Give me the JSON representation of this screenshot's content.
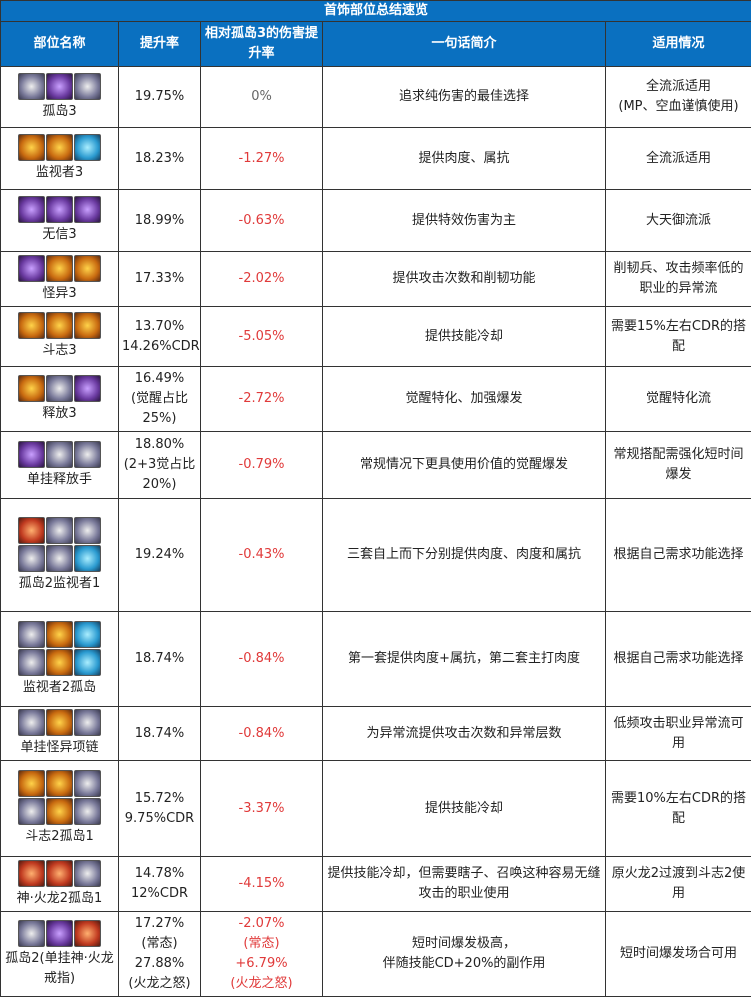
{
  "title": "首饰部位总结速览",
  "headers": [
    "部位名称",
    "提升率",
    "相对孤岛3的伤害提升率",
    "一句话简介",
    "适用情况"
  ],
  "rows": [
    {
      "name": "孤岛3",
      "icons": [
        "c0",
        "c2",
        "c0"
      ],
      "rate": "19.75%",
      "rel": "0%",
      "rel_color": "gray",
      "desc": "追求纯伤害的最佳选择",
      "use": "全流派适用\n(MP、空血谨慎使用)"
    },
    {
      "name": "监视者3",
      "icons": [
        "c1",
        "c1",
        "c3"
      ],
      "rate": "18.23%",
      "rel": "-1.27%",
      "rel_color": "red",
      "desc": "提供肉度、属抗",
      "use": "全流派适用"
    },
    {
      "name": "无信3",
      "icons": [
        "c2",
        "c2",
        "c2"
      ],
      "rate": "18.99%",
      "rel": "-0.63%",
      "rel_color": "red",
      "desc": "提供特效伤害为主",
      "use": "大天御流派"
    },
    {
      "name": "怪异3",
      "icons": [
        "c2",
        "c1",
        "c1"
      ],
      "rate": "17.33%",
      "rel": "-2.02%",
      "rel_color": "red",
      "desc": "提供攻击次数和削韧功能",
      "use": "削韧兵、攻击频率低的职业的异常流"
    },
    {
      "name": "斗志3",
      "icons": [
        "c1",
        "c1",
        "c1"
      ],
      "rate": "13.70%\n14.26%CDR",
      "rel": "-5.05%",
      "rel_color": "red",
      "desc": "提供技能冷却",
      "use": "需要15%左右CDR的搭配"
    },
    {
      "name": "释放3",
      "icons": [
        "c1",
        "c0",
        "c2"
      ],
      "rate": "16.49%\n(觉醒占比\n25%)",
      "rel": "-2.72%",
      "rel_color": "red",
      "desc": "觉醒特化、加强爆发",
      "use": "觉醒特化流"
    },
    {
      "name": "单挂释放手",
      "icons": [
        "c2",
        "c0",
        "c0"
      ],
      "rate": "18.80%\n(2+3觉占比\n20%)",
      "rel": "-0.79%",
      "rel_color": "red",
      "desc": "常规情况下更具使用价值的觉醒爆发",
      "use": "常规搭配需强化短时间爆发"
    },
    {
      "name": "孤岛2监视者1",
      "icons": [
        "c4",
        "c0",
        "c0",
        "c0",
        "c0",
        "c3"
      ],
      "rate": "19.24%",
      "rel": "-0.43%",
      "rel_color": "red",
      "desc": "三套自上而下分别提供肉度、肉度和属抗",
      "use": "根据自己需求功能选择"
    },
    {
      "name": "监视者2孤岛",
      "icons": [
        "c0",
        "c1",
        "c3",
        "c0",
        "c1",
        "c3"
      ],
      "rate": "18.74%",
      "rel": "-0.84%",
      "rel_color": "red",
      "desc": "第一套提供肉度+属抗，第二套主打肉度",
      "use": "根据自己需求功能选择"
    },
    {
      "name": "单挂怪异项链",
      "icons": [
        "c0",
        "c1",
        "c0"
      ],
      "rate": "18.74%",
      "rel": "-0.84%",
      "rel_color": "red",
      "desc": "为异常流提供攻击次数和异常层数",
      "use": "低频攻击职业异常流可用"
    },
    {
      "name": "斗志2孤岛1",
      "icons": [
        "c1",
        "c1",
        "c0",
        "c0",
        "c1",
        "c0"
      ],
      "rate": "15.72%\n9.75%CDR",
      "rel": "-3.37%",
      "rel_color": "red",
      "desc": "提供技能冷却",
      "use": "需要10%左右CDR的搭配"
    },
    {
      "name": "神·火龙2孤岛1",
      "icons": [
        "c4",
        "c4",
        "c0"
      ],
      "rate": "14.78%\n12%CDR",
      "rel": "-4.15%",
      "rel_color": "red",
      "desc": "提供技能冷却，但需要瞎子、召唤这种容易无缝攻击的职业使用",
      "use": "原火龙2过渡到斗志2使用"
    },
    {
      "name": "孤岛2(单挂神·火龙戒指)",
      "icons": [
        "c0",
        "c2",
        "c4"
      ],
      "rate": "17.27%\n(常态)\n27.88%\n(火龙之怒)",
      "rel": "-2.07%\n(常态)\n+6.79%\n(火龙之怒)",
      "rel_color": "red",
      "desc": "短时间爆发极高，\n伴随技能CD+20%的副作用",
      "use": "短时间爆发场合可用"
    }
  ]
}
